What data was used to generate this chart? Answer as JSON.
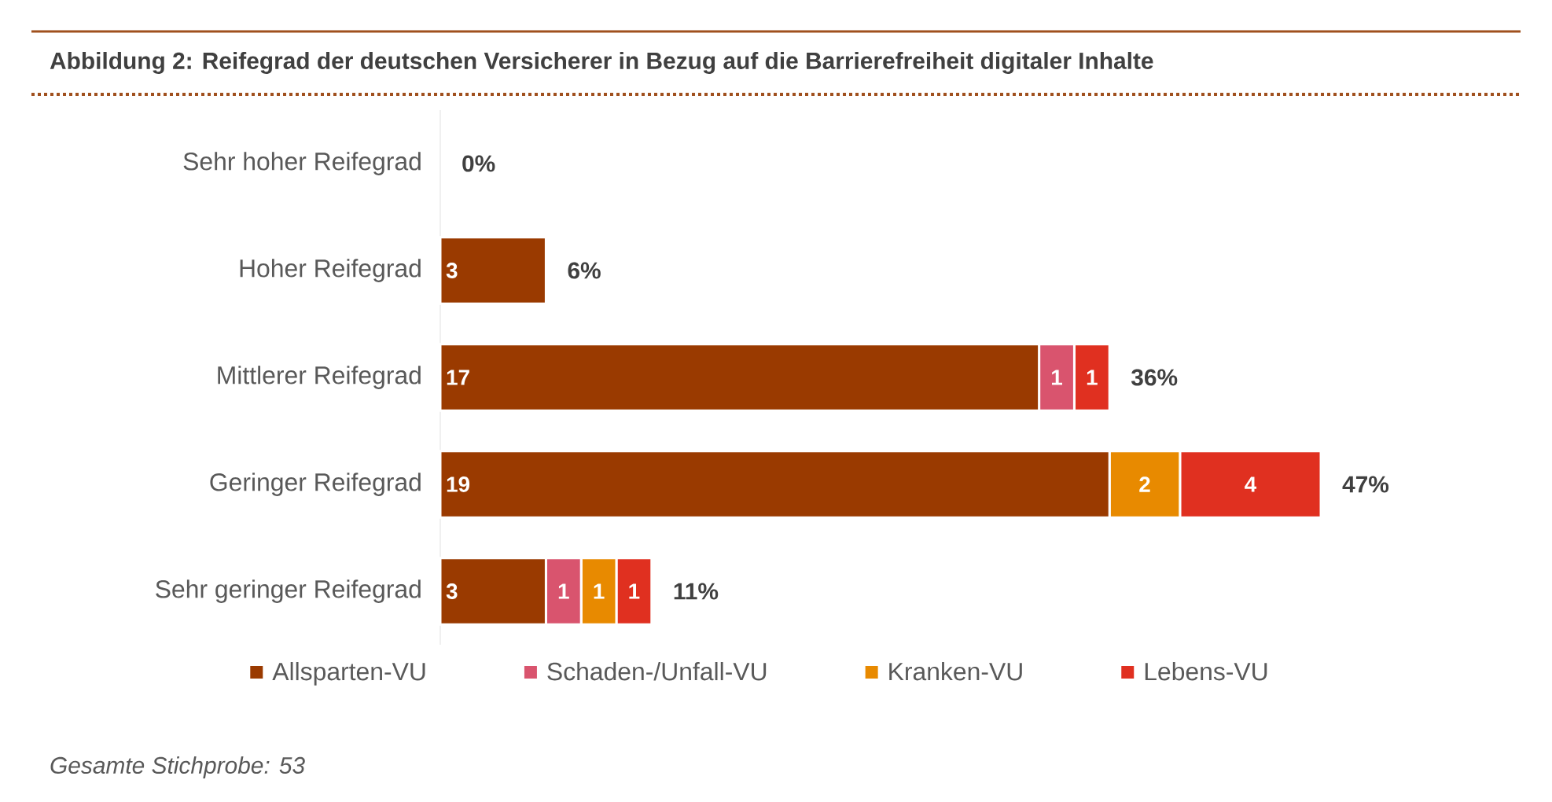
{
  "chart_data": {
    "type": "bar",
    "orientation": "horizontal",
    "stacked": true,
    "title": "Abbildung 2: Reifegrad der deutschen Versicherer in Bezug auf die Barrierefreiheit digitaler Inhalte",
    "categories": [
      "Sehr hoher Reifegrad",
      "Hoher Reifegrad",
      "Mittlerer Reifegrad",
      "Geringer Reifegrad",
      "Sehr geringer Reifegrad"
    ],
    "series": [
      {
        "name": "Allsparten-VU",
        "color": "#9a3a00",
        "values": [
          0,
          3,
          17,
          19,
          3
        ],
        "value_labels": [
          null,
          "3",
          "17",
          "19",
          "3"
        ]
      },
      {
        "name": "Schaden-/Unfall-VU",
        "color": "#d9546e",
        "values": [
          0,
          0,
          1,
          0,
          1
        ],
        "value_labels": [
          null,
          null,
          "1",
          null,
          "1"
        ]
      },
      {
        "name": "Kranken-VU",
        "color": "#e88a00",
        "values": [
          0,
          0,
          0,
          2,
          1
        ],
        "value_labels": [
          null,
          null,
          null,
          "2",
          "1"
        ]
      },
      {
        "name": "Lebens-VU",
        "color": "#e03020",
        "values": [
          0,
          0,
          1,
          4,
          1
        ],
        "value_labels": [
          null,
          null,
          "1",
          "4",
          "1"
        ]
      }
    ],
    "tick_labels": "y",
    "legend": "bottom",
    "annotations": [
      {
        "text": "0%",
        "x": 0,
        "y": "Sehr hoher Reifegrad"
      },
      {
        "text": "6%",
        "x": 3,
        "y": "Hoher Reifegrad"
      },
      {
        "text": "36%",
        "x": 19,
        "y": "Mittlerer Reifegrad"
      },
      {
        "text": "47%",
        "x": 25,
        "y": "Geringer Reifegrad"
      },
      {
        "text": "11%",
        "x": 6,
        "y": "Sehr geringer Reifegrad"
      },
      "Gesamte Stichprobe: 53"
    ]
  }
}
